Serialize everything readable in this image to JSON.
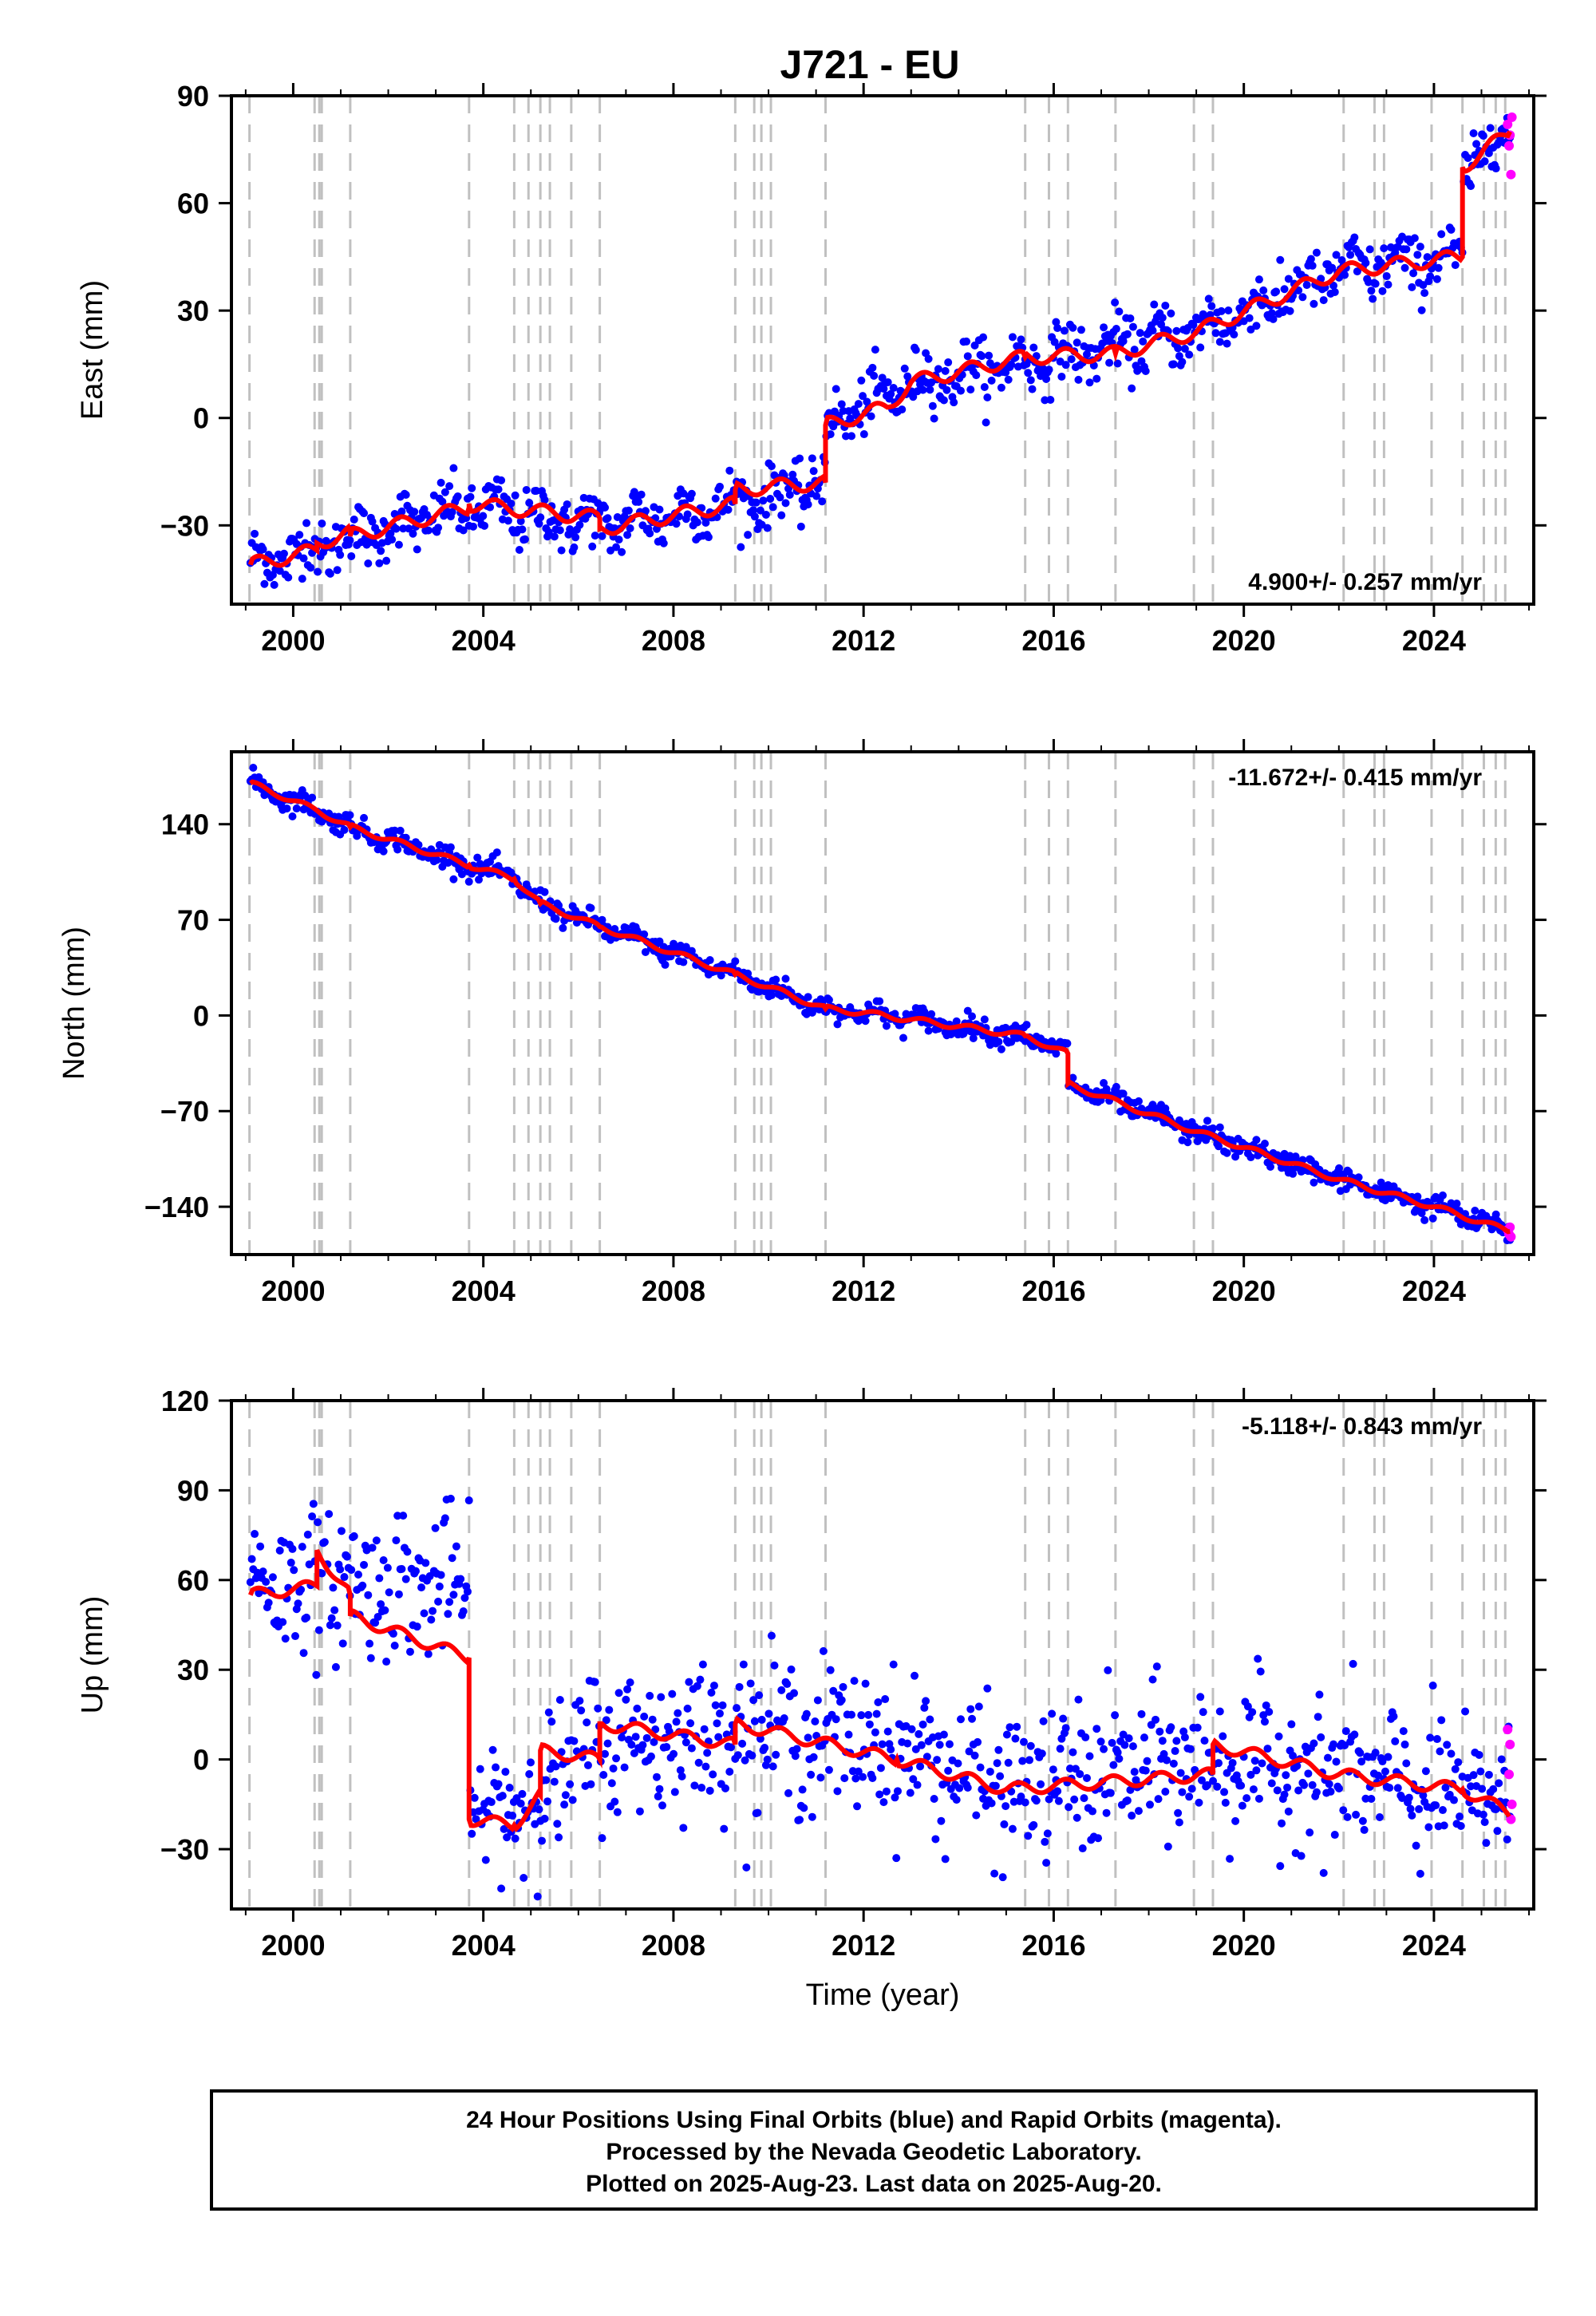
{
  "title": "J721 - EU",
  "colors": {
    "final": "#0000ff",
    "rapid": "#ff00ff",
    "model": "#ff0000",
    "event_line": "#c0c0c0"
  },
  "events": [
    1999.08,
    2000.45,
    2000.55,
    2000.6,
    2001.2,
    2003.7,
    2004.65,
    2004.95,
    2005.2,
    2005.4,
    2005.85,
    2006.45,
    2009.3,
    2009.7,
    2009.85,
    2010.05,
    2011.2,
    2015.4,
    2015.9,
    2016.3,
    2017.3,
    2018.95,
    2019.35,
    2022.1,
    2022.75,
    2022.95,
    2023.95,
    2024.6,
    2025.05,
    2025.3,
    2025.5
  ],
  "chart_data": [
    {
      "type": "scatter",
      "name": "east",
      "title": "J721 - EU",
      "xlabel": "",
      "ylabel": "East (mm)",
      "xlim": [
        1998.7,
        2026.1
      ],
      "ylim": [
        -52,
        90
      ],
      "xticks": [
        "2000",
        "2004",
        "2008",
        "2012",
        "2016",
        "2020",
        "2024"
      ],
      "yticks": [
        "−30",
        "0",
        "30",
        "60",
        "90"
      ],
      "rate_label": "4.900+/- 0.257 mm/yr",
      "rate_position": "bottom-right",
      "model": {
        "x": [
          1999.1,
          2000.5,
          2000.5,
          2001.2,
          2001.2,
          2003.7,
          2003.7,
          2006.45,
          2006.45,
          2009.3,
          2009.3,
          2011.2,
          2011.2,
          2012.5,
          2013.0,
          2015.4,
          2017.3,
          2019.0,
          2022.0,
          2024.6,
          2024.6,
          2025.6
        ],
        "y": [
          -41,
          -37,
          -35,
          -32,
          -33,
          -25,
          -24,
          -28,
          -31,
          -24,
          -20,
          -18,
          -2,
          3,
          10,
          17,
          18,
          24,
          41,
          45,
          70,
          80
        ]
      },
      "final_envelope": {
        "x": [
          1999.1,
          2003.7,
          2006.5,
          2009.3,
          2011.2,
          2011.2,
          2013.0,
          2016.0,
          2019.0,
          2022.0,
          2024.6,
          2024.6,
          2025.6
        ],
        "y": [
          -41,
          -25,
          -30,
          -24,
          -18,
          -2,
          10,
          17,
          24,
          41,
          45,
          70,
          80
        ],
        "spread": 4
      },
      "rapid_points": {
        "x": [
          2025.55,
          2025.58,
          2025.6,
          2025.62,
          2025.64
        ],
        "y": [
          82,
          76,
          79,
          68,
          84
        ]
      }
    },
    {
      "type": "scatter",
      "name": "north",
      "title": "",
      "xlabel": "",
      "ylabel": "North (mm)",
      "xlim": [
        1998.7,
        2026.1
      ],
      "ylim": [
        -175,
        193
      ],
      "xticks": [
        "2000",
        "2004",
        "2008",
        "2012",
        "2016",
        "2020",
        "2024"
      ],
      "yticks": [
        "−140",
        "−70",
        "0",
        "70",
        "140"
      ],
      "rate_label": "-11.672+/- 0.415 mm/yr",
      "rate_position": "top-right",
      "model": {
        "x": [
          1999.1,
          2000.5,
          2001.2,
          2003.7,
          2004.65,
          2005.2,
          2006.45,
          2009.3,
          2011.2,
          2012.0,
          2015.4,
          2016.3,
          2016.3,
          2019.0,
          2022.0,
          2024.0,
          2025.6
        ],
        "y": [
          170,
          150,
          138,
          110,
          100,
          82,
          65,
          30,
          5,
          2,
          -15,
          -28,
          -50,
          -85,
          -120,
          -140,
          -158
        ]
      },
      "final_envelope": {
        "x": [
          1999.1,
          2000.5,
          2001.2,
          2003.7,
          2004.65,
          2005.2,
          2006.45,
          2009.3,
          2011.2,
          2012.0,
          2015.4,
          2016.3,
          2016.3,
          2019.0,
          2022.0,
          2024.0,
          2025.6
        ],
        "y": [
          170,
          150,
          138,
          110,
          100,
          82,
          65,
          30,
          5,
          2,
          -15,
          -28,
          -50,
          -85,
          -120,
          -140,
          -158
        ],
        "spread": 4
      },
      "rapid_points": {
        "x": [
          2025.55,
          2025.58,
          2025.6,
          2025.62
        ],
        "y": [
          -157,
          -160,
          -155,
          -162
        ]
      }
    },
    {
      "type": "scatter",
      "name": "up",
      "title": "",
      "xlabel": "Time (year)",
      "ylabel": "Up (mm)",
      "xlim": [
        1998.7,
        2026.1
      ],
      "ylim": [
        -50,
        120
      ],
      "xticks": [
        "2000",
        "2004",
        "2008",
        "2012",
        "2016",
        "2020",
        "2024"
      ],
      "yticks": [
        "−30",
        "0",
        "30",
        "60",
        "90",
        "120"
      ],
      "rate_label": "-5.118+/- 0.843 mm/yr",
      "rate_position": "top-right",
      "model": {
        "x": [
          1999.1,
          2000.5,
          2000.5,
          2001.2,
          2001.2,
          2003.7,
          2003.7,
          2004.65,
          2005.2,
          2005.2,
          2006.45,
          2006.45,
          2009.3,
          2009.3,
          2012.7,
          2015.0,
          2019.35,
          2019.35,
          2022.0,
          2024.6,
          2025.6
        ],
        "y": [
          55,
          58,
          70,
          55,
          48,
          34,
          -20,
          -22,
          -12,
          3,
          0,
          12,
          5,
          12,
          0,
          -10,
          -5,
          5,
          -5,
          -10,
          -18
        ]
      },
      "final_envelope": {
        "x": [
          1999.1,
          2003.7,
          2003.7,
          2005.2,
          2006.45,
          2009.3,
          2012.7,
          2015.0,
          2019.35,
          2022.0,
          2025.6
        ],
        "y": [
          60,
          58,
          -22,
          -10,
          5,
          10,
          5,
          -10,
          0,
          -5,
          -15
        ],
        "spread": 12
      },
      "rapid_points": {
        "x": [
          2025.55,
          2025.58,
          2025.6,
          2025.62,
          2025.64
        ],
        "y": [
          10,
          -5,
          5,
          -20,
          -15
        ]
      }
    }
  ],
  "footer": {
    "line1": "24 Hour Positions Using Final Orbits (blue) and Rapid Orbits (magenta).",
    "line2": "Processed by the Nevada Geodetic Laboratory.",
    "line3": "Plotted on 2025-Aug-23. Last data on 2025-Aug-20."
  }
}
